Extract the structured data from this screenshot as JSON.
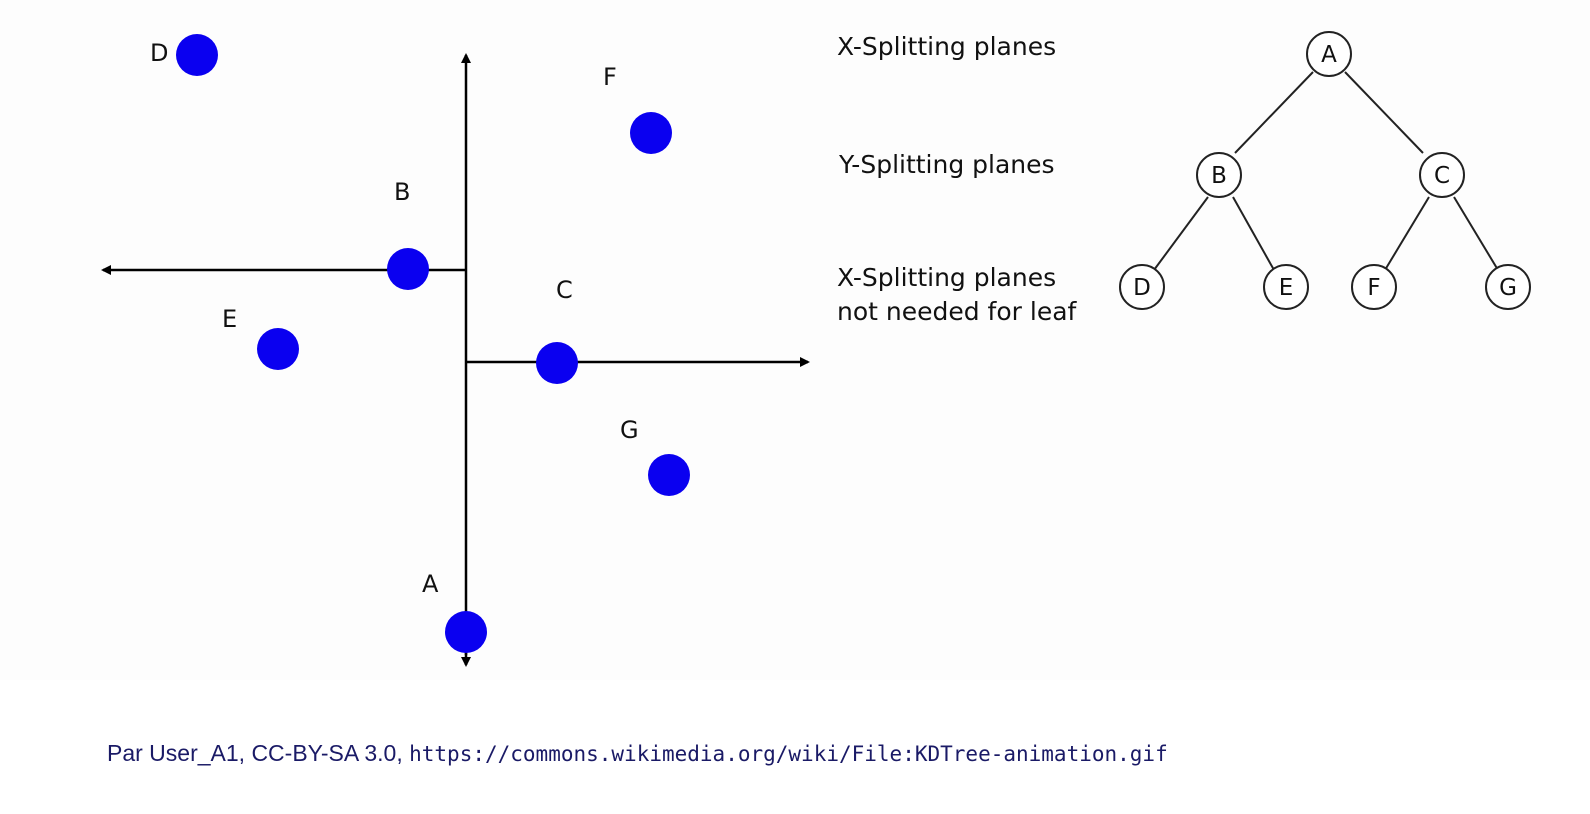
{
  "colors": {
    "point_fill": "#0a00f0",
    "axis": "#000000",
    "text": "#111111",
    "credit_text": "#1a1a66"
  },
  "scatter": {
    "points": [
      {
        "name": "A"
      },
      {
        "name": "B"
      },
      {
        "name": "C"
      },
      {
        "name": "D"
      },
      {
        "name": "E"
      },
      {
        "name": "F"
      },
      {
        "name": "G"
      }
    ]
  },
  "tree": {
    "levels": [
      {
        "label": "X-Splitting planes"
      },
      {
        "label": "Y-Splitting planes"
      },
      {
        "label_line1": "X-Splitting planes",
        "label_line2": "not needed for leaf"
      }
    ],
    "nodes": {
      "root": "A",
      "left": "B",
      "right": "C",
      "left_left": "D",
      "left_right": "E",
      "right_left": "F",
      "right_right": "G"
    }
  },
  "credit": {
    "prefix": "Par User_A1, CC-BY-SA 3.0, ",
    "url": "https://commons.wikimedia.org/wiki/File:KDTree-animation.gif"
  }
}
